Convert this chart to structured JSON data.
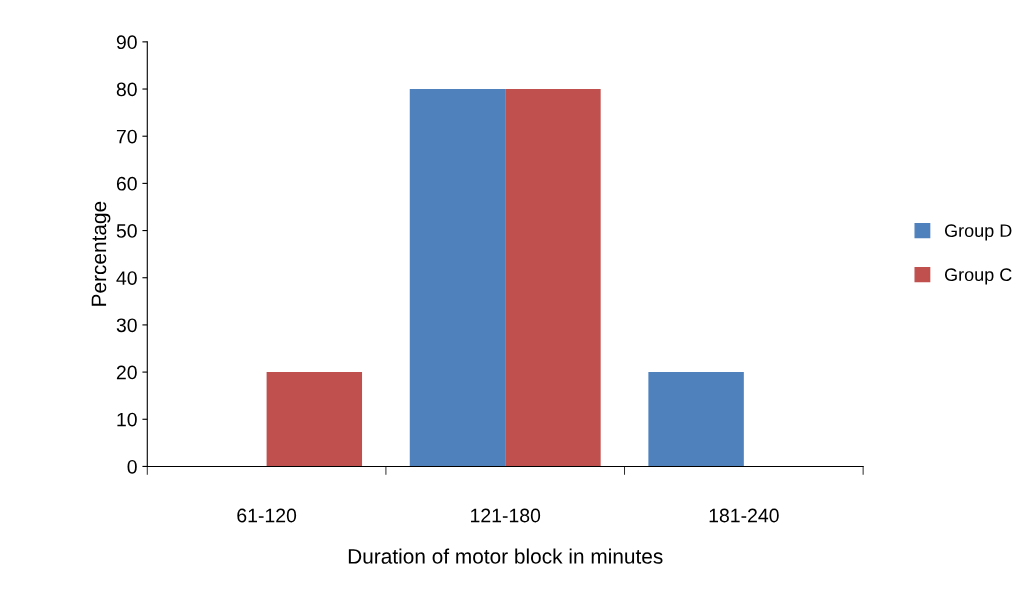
{
  "chart_data": {
    "type": "bar",
    "xlabel": "Duration of motor block in minutes",
    "ylabel": "Percentage",
    "categories": [
      "61-120",
      "121-180",
      "181-240"
    ],
    "series": [
      {
        "name": "Group D",
        "color": "#4f81bd",
        "values": [
          0,
          80,
          20
        ]
      },
      {
        "name": "Group C",
        "color": "#c0504d",
        "values": [
          20,
          80,
          0
        ]
      }
    ],
    "ylim": [
      0,
      90
    ],
    "yticks": [
      0,
      10,
      20,
      30,
      40,
      50,
      60,
      70,
      80,
      90
    ],
    "grid": false,
    "legend": "right"
  }
}
